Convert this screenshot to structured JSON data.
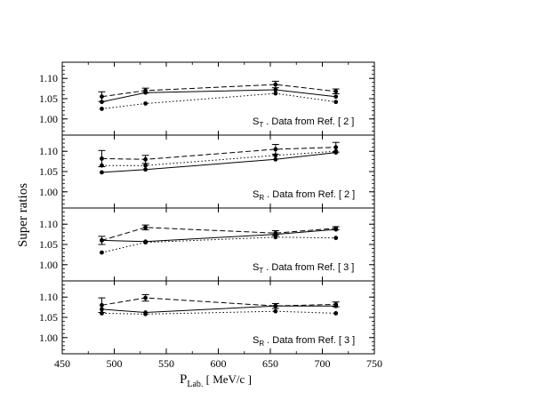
{
  "chart_data": {
    "type": "line",
    "ylabel": "Super  ratios",
    "xlabel_main": "P",
    "xlabel_sub": "Lab.",
    "xlabel_unit": "  [ MeV/c ]",
    "xlim": [
      450,
      750
    ],
    "x_ticks": [
      450,
      500,
      550,
      600,
      650,
      700,
      750
    ],
    "ylim": [
      0.96,
      1.14
    ],
    "y_ticks": [
      1.0,
      1.05,
      1.1
    ],
    "y_tick_labels": [
      "1.00",
      "1.05",
      "1.10"
    ],
    "x": [
      488,
      530,
      655,
      713
    ],
    "grid": false,
    "panels": [
      {
        "label_main": "S",
        "label_sub": "T",
        "label_rest": " .  Data from  Ref. [ 2 ]",
        "series": [
          {
            "style": "solid",
            "values": [
              1.042,
              1.065,
              1.072,
              1.055
            ],
            "errors": [
              0.0,
              0.0,
              0.0,
              0.0
            ]
          },
          {
            "style": "dashed",
            "values": [
              1.055,
              1.07,
              1.085,
              1.068
            ],
            "errors": [
              0.012,
              0.006,
              0.008,
              0.006
            ]
          },
          {
            "style": "dotted",
            "values": [
              1.025,
              1.038,
              1.063,
              1.042
            ],
            "errors": [
              0.0,
              0.0,
              0.0,
              0.0
            ]
          }
        ]
      },
      {
        "label_main": "S",
        "label_sub": "R",
        "label_rest": " .  Data from  Ref. [ 2 ]",
        "series": [
          {
            "style": "solid",
            "values": [
              1.048,
              1.055,
              1.08,
              1.097
            ],
            "errors": [
              0.0,
              0.0,
              0.0,
              0.0
            ]
          },
          {
            "style": "dashed",
            "values": [
              1.082,
              1.08,
              1.105,
              1.11
            ],
            "errors": [
              0.02,
              0.01,
              0.012,
              0.012
            ]
          },
          {
            "style": "dotted",
            "values": [
              1.065,
              1.065,
              1.09,
              1.1
            ],
            "errors": [
              0.0,
              0.0,
              0.0,
              0.0
            ]
          }
        ]
      },
      {
        "label_main": "S",
        "label_sub": "T",
        "label_rest": " .  Data from  Ref. [ 3 ]",
        "series": [
          {
            "style": "solid",
            "values": [
              1.06,
              1.057,
              1.075,
              1.087
            ],
            "errors": [
              0.0,
              0.0,
              0.0,
              0.0
            ]
          },
          {
            "style": "dashed",
            "values": [
              1.06,
              1.092,
              1.078,
              1.09
            ],
            "errors": [
              0.01,
              0.006,
              0.006,
              0.004
            ]
          },
          {
            "style": "dotted",
            "values": [
              1.03,
              1.055,
              1.068,
              1.066
            ],
            "errors": [
              0.0,
              0.0,
              0.0,
              0.0
            ]
          }
        ]
      },
      {
        "label_main": "S",
        "label_sub": "R",
        "label_rest": " .  Data from  Ref. [ 3 ]",
        "series": [
          {
            "style": "solid",
            "values": [
              1.07,
              1.062,
              1.078,
              1.078
            ],
            "errors": [
              0.0,
              0.0,
              0.0,
              0.0
            ]
          },
          {
            "style": "dashed",
            "values": [
              1.08,
              1.098,
              1.078,
              1.082
            ],
            "errors": [
              0.018,
              0.008,
              0.006,
              0.006
            ]
          },
          {
            "style": "dotted",
            "values": [
              1.06,
              1.058,
              1.065,
              1.06
            ],
            "errors": [
              0.0,
              0.0,
              0.0,
              0.0
            ]
          }
        ]
      }
    ]
  }
}
